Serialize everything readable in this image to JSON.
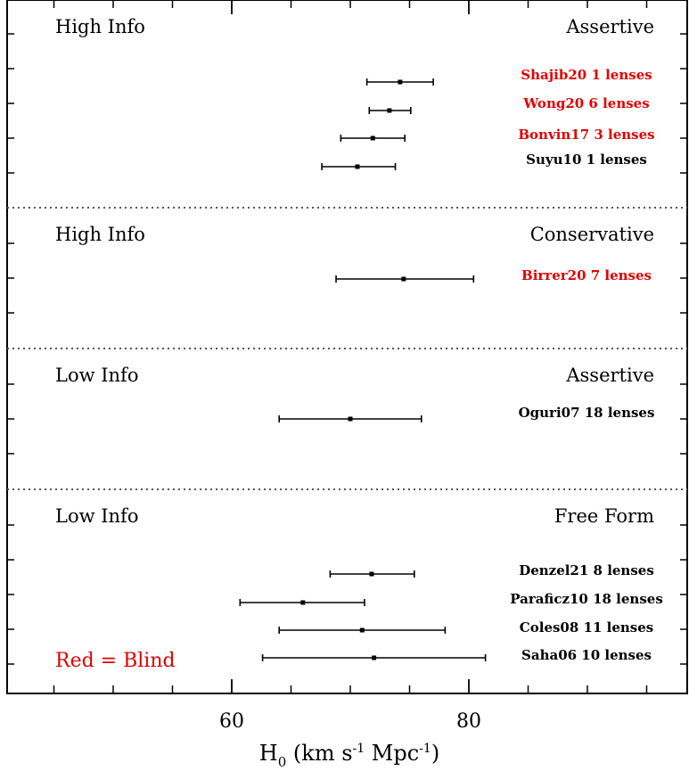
{
  "chart_data": {
    "type": "scatter",
    "subtype": "forest-plot-with-error-bars",
    "xlabel": "H0 (km s-1 Mpc-1)",
    "xlabel_parts": {
      "main": "H",
      "sub": "0",
      "rest": " (km s",
      "sup1": "-1",
      "mid": " Mpc",
      "sup2": "-1",
      "end": ")"
    },
    "xlim": [
      40,
      96
    ],
    "xticks_major": [
      60,
      80
    ],
    "xticks_minor": [
      45,
      50,
      55,
      65,
      70,
      75,
      85,
      90,
      95
    ],
    "grid": false,
    "colors": {
      "blind": "#e00000",
      "unblinded": "#000000",
      "separator": "#555555"
    },
    "annotation": "Red = Blind",
    "panels": [
      {
        "info": "High Info",
        "style": "Assertive",
        "points": [
          {
            "label": "Shajib20 1 lenses",
            "H0": 74.2,
            "lo": 71.4,
            "hi": 77.0,
            "blind": true
          },
          {
            "label": "Wong20 6 lenses",
            "H0": 73.3,
            "lo": 71.6,
            "hi": 75.1,
            "blind": true
          },
          {
            "label": "Bonvin17 3 lenses",
            "H0": 71.9,
            "lo": 69.2,
            "hi": 74.6,
            "blind": true
          },
          {
            "label": "Suyu10 1 lenses",
            "H0": 70.6,
            "lo": 67.6,
            "hi": 73.8,
            "blind": false
          }
        ]
      },
      {
        "info": "High Info",
        "style": "Conservative",
        "points": [
          {
            "label": "Birrer20 7 lenses",
            "H0": 74.5,
            "lo": 68.8,
            "hi": 80.4,
            "blind": true
          }
        ]
      },
      {
        "info": "Low Info",
        "style": "Assertive",
        "points": [
          {
            "label": "Oguri07 18 lenses",
            "H0": 70.0,
            "lo": 64.0,
            "hi": 76.0,
            "blind": false
          }
        ]
      },
      {
        "info": "Low Info",
        "style": "Free Form",
        "points": [
          {
            "label": "Denzel21 8 lenses",
            "H0": 71.8,
            "lo": 68.3,
            "hi": 75.4,
            "blind": false
          },
          {
            "label": "Paraficz10 18 lenses",
            "H0": 66.0,
            "lo": 60.7,
            "hi": 71.2,
            "blind": false
          },
          {
            "label": "Coles08 11 lenses",
            "H0": 71.0,
            "lo": 64.0,
            "hi": 78.0,
            "blind": false
          },
          {
            "label": "Saha06 10 lenses",
            "H0": 72.0,
            "lo": 62.6,
            "hi": 81.4,
            "blind": false
          }
        ]
      }
    ]
  }
}
